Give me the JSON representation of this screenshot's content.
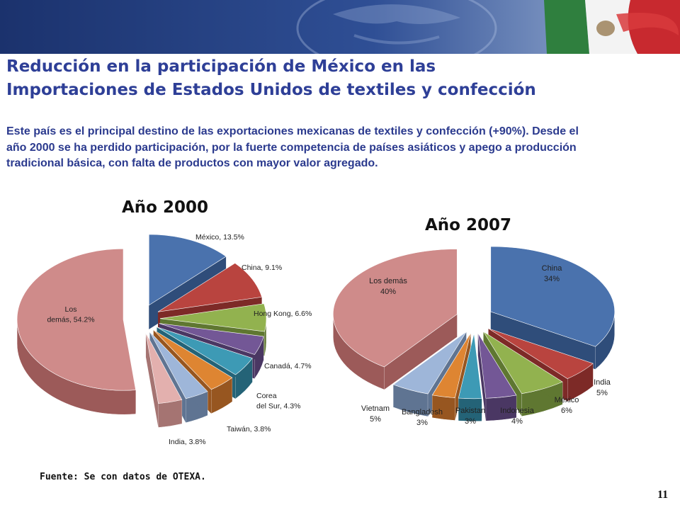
{
  "header": {
    "title_line1": "Reducción en la participación de México en las",
    "title_line2": "Importaciones de Estados Unidos de textiles y confección",
    "description": "Este país es el principal destino de las exportaciones mexicanas de  textiles y confección (+90%). Desde el año 2000 se ha perdido participación, por la fuerte competencia de países asiáticos y apego a producción tradicional básica, con falta de productos con mayor valor agregado."
  },
  "chart_data": [
    {
      "type": "pie",
      "title": "Año 2000",
      "slices": [
        {
          "label": "México, 13.5%",
          "value": 13.5,
          "color": "#4a72ad",
          "dark": "#2f4d7a"
        },
        {
          "label": "China, 9.1%",
          "value": 9.1,
          "color": "#b9443f",
          "dark": "#7d2a27"
        },
        {
          "label": "Hong Kong, 6.6%",
          "value": 6.6,
          "color": "#92b24f",
          "dark": "#5f7731"
        },
        {
          "label": "",
          "value": 4.5,
          "color": "#735796",
          "dark": "#4a3763"
        },
        {
          "label": "Canadá, 4.7%",
          "value": 4.7,
          "color": "#3d9ab5",
          "dark": "#246377"
        },
        {
          "label": "Corea del Sur, 4.3%",
          "value": 4.3,
          "color": "#de8532",
          "dark": "#975620"
        },
        {
          "label": "Taiwán, 3.8%",
          "value": 3.8,
          "color": "#9eb6d9",
          "dark": "#5f7492"
        },
        {
          "label": "India, 3.8%",
          "value": 3.8,
          "color": "#e3b0ae",
          "dark": "#a57472"
        },
        {
          "label": "Los demás, 54.2%",
          "value": 54.2,
          "color": "#cf8b8a",
          "dark": "#9c5a59"
        }
      ]
    },
    {
      "type": "pie",
      "title": "Año 2007",
      "slices": [
        {
          "label": "China 34%",
          "value": 34,
          "color": "#4a72ad",
          "dark": "#2f4d7a"
        },
        {
          "label": "India 5%",
          "value": 5,
          "color": "#b9443f",
          "dark": "#7d2a27"
        },
        {
          "label": "México 6%",
          "value": 6,
          "color": "#92b24f",
          "dark": "#5f7731"
        },
        {
          "label": "Indonesia 4%",
          "value": 4,
          "color": "#735796",
          "dark": "#4a3763"
        },
        {
          "label": "Pakistan 3%",
          "value": 3,
          "color": "#3d9ab5",
          "dark": "#246377"
        },
        {
          "label": "Bangladesh 3%",
          "value": 3,
          "color": "#de8532",
          "dark": "#975620"
        },
        {
          "label": "Vietnam 5%",
          "value": 5,
          "color": "#9eb6d9",
          "dark": "#5f7492"
        },
        {
          "label": "Los demás 40%",
          "value": 40,
          "color": "#cf8b8a",
          "dark": "#9c5a59"
        }
      ]
    }
  ],
  "footer": {
    "source": "Fuente: Se con datos de OTEXA.",
    "page_number": "11"
  },
  "colors": {
    "title": "#2e3f97",
    "banner": "#1e3a78"
  }
}
